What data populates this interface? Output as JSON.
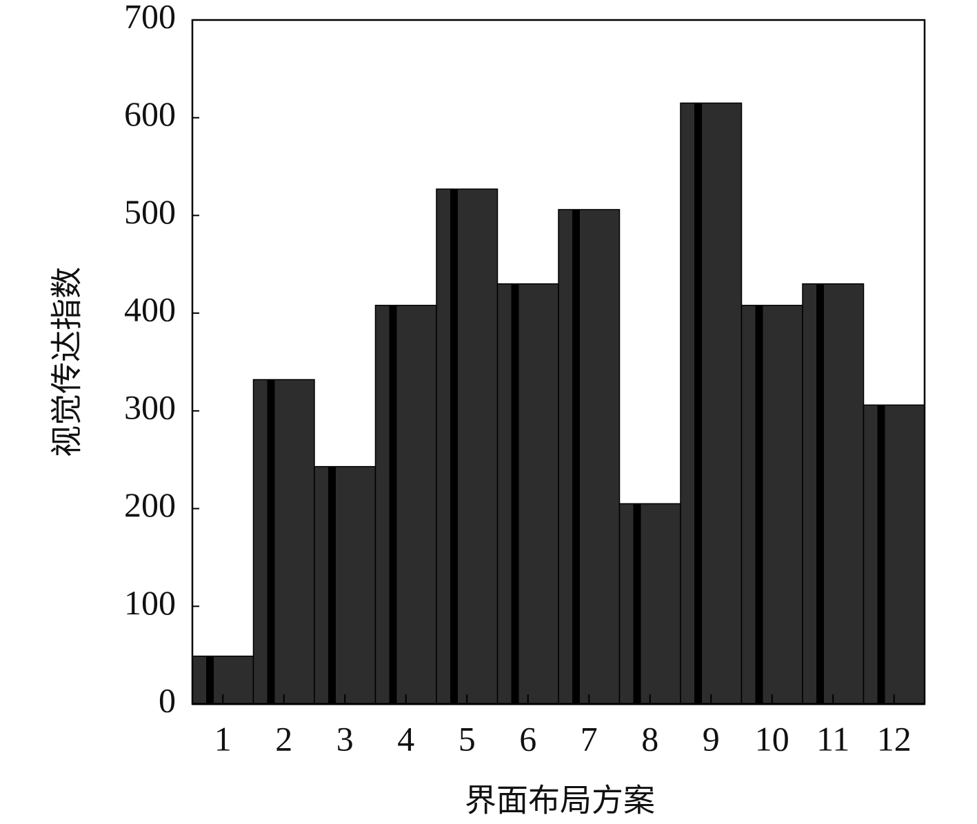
{
  "chart_data": {
    "type": "bar",
    "xlabel": "界面布局方案",
    "ylabel": "视觉传达指数",
    "categories": [
      "1",
      "2",
      "3",
      "4",
      "5",
      "6",
      "7",
      "8",
      "9",
      "10",
      "11",
      "12"
    ],
    "values": [
      49,
      332,
      243,
      408,
      527,
      430,
      506,
      205,
      615,
      408,
      430,
      306
    ],
    "color": "#2d2d2d",
    "ylim": [
      0,
      700
    ],
    "yticks": [
      0,
      100,
      200,
      300,
      400,
      500,
      600,
      700
    ]
  }
}
